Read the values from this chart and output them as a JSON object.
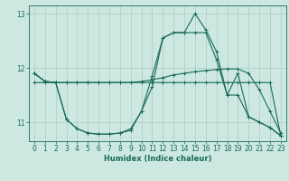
{
  "xlabel": "Humidex (Indice chaleur)",
  "xlim": [
    -0.5,
    23.5
  ],
  "ylim": [
    10.65,
    13.15
  ],
  "yticks": [
    11,
    12,
    13
  ],
  "xticks": [
    0,
    1,
    2,
    3,
    4,
    5,
    6,
    7,
    8,
    9,
    10,
    11,
    12,
    13,
    14,
    15,
    16,
    17,
    18,
    19,
    20,
    21,
    22,
    23
  ],
  "bg_color": "#cce8e0",
  "grid_color": "#aaccc4",
  "line_color": "#1a6b5a",
  "lines": [
    {
      "x": [
        0,
        1,
        2,
        3,
        4,
        5,
        6,
        7,
        8,
        9,
        10,
        11,
        12,
        13,
        14,
        15,
        16,
        17,
        18,
        19,
        20,
        21,
        22,
        23
      ],
      "y": [
        11.9,
        11.75,
        11.73,
        11.05,
        10.88,
        10.8,
        10.78,
        10.78,
        10.8,
        10.85,
        11.2,
        11.85,
        12.55,
        12.65,
        12.65,
        13.0,
        12.7,
        12.3,
        11.5,
        11.5,
        11.1,
        11.0,
        10.9,
        10.75
      ]
    },
    {
      "x": [
        0,
        1,
        2,
        3,
        4,
        5,
        6,
        7,
        8,
        9,
        10,
        11,
        12,
        13,
        14,
        15,
        16,
        17,
        18,
        19,
        20,
        21,
        22,
        23
      ],
      "y": [
        11.9,
        11.75,
        11.73,
        11.05,
        10.88,
        10.8,
        10.78,
        10.78,
        10.8,
        10.88,
        11.2,
        11.65,
        12.55,
        12.65,
        12.65,
        12.65,
        12.65,
        12.15,
        11.5,
        11.9,
        11.1,
        11.0,
        10.9,
        10.75
      ]
    },
    {
      "x": [
        0,
        1,
        2,
        3,
        4,
        5,
        6,
        7,
        8,
        9,
        10,
        11,
        12,
        13,
        14,
        15,
        16,
        17,
        18,
        19,
        20,
        21,
        22,
        23
      ],
      "y": [
        11.73,
        11.73,
        11.73,
        11.73,
        11.73,
        11.73,
        11.73,
        11.73,
        11.73,
        11.73,
        11.75,
        11.78,
        11.82,
        11.87,
        11.9,
        11.93,
        11.95,
        11.97,
        11.98,
        11.98,
        11.9,
        11.6,
        11.2,
        10.8
      ]
    },
    {
      "x": [
        0,
        1,
        2,
        3,
        4,
        5,
        6,
        7,
        8,
        9,
        10,
        11,
        12,
        13,
        14,
        15,
        16,
        17,
        18,
        19,
        20,
        21,
        22,
        23
      ],
      "y": [
        11.9,
        11.75,
        11.73,
        11.73,
        11.73,
        11.73,
        11.73,
        11.73,
        11.73,
        11.73,
        11.73,
        11.73,
        11.73,
        11.73,
        11.73,
        11.73,
        11.73,
        11.73,
        11.73,
        11.73,
        11.73,
        11.73,
        11.73,
        10.75
      ]
    }
  ]
}
